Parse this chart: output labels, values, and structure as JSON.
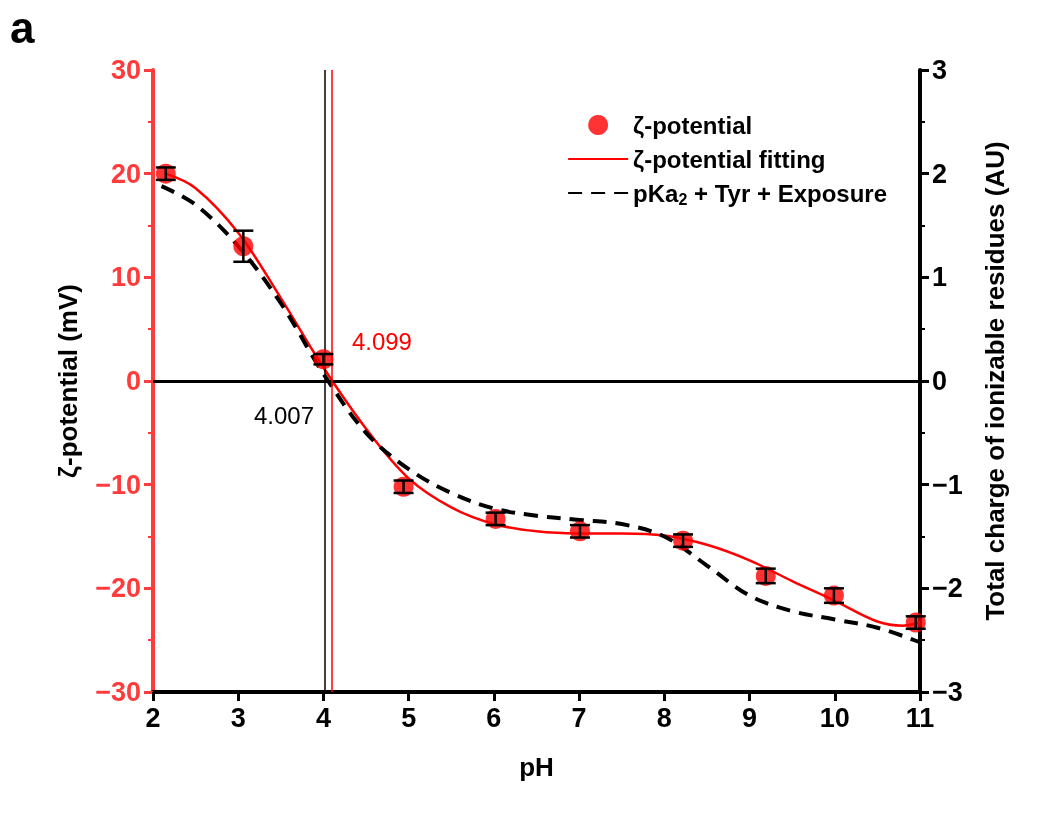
{
  "chart_data": {
    "type": "scatter",
    "xlabel": "pH",
    "ylabel": "ζ-potential (mV)",
    "y2label": "Total charge of ionizable residues (AU)",
    "annotations": [
      "a"
    ],
    "xlim": [
      2,
      11
    ],
    "xticks": [
      2,
      3,
      4,
      5,
      6,
      7,
      8,
      9,
      10,
      11
    ],
    "ylim": [
      -30,
      30
    ],
    "yticks": [
      -30,
      -20,
      -10,
      0,
      10,
      20,
      30
    ],
    "y2lim": [
      -3,
      3
    ],
    "y2ticks": [
      -3,
      -2,
      -1,
      0,
      1,
      2,
      3
    ],
    "legend": "top right",
    "grid": false,
    "series": [
      {
        "name": "ζ-potential",
        "marker": "circle",
        "color": "#ff0000",
        "x": [
          2.15,
          3.06,
          4.0,
          4.94,
          6.02,
          7.01,
          8.22,
          9.19,
          9.99,
          10.95
        ],
        "values": [
          20,
          13,
          2.1,
          -10.2,
          -13.3,
          -14.5,
          -15.4,
          -18.8,
          -20.7,
          -23.3
        ],
        "errors": [
          0.6,
          1.5,
          0.5,
          0.6,
          0.6,
          0.6,
          0.6,
          0.7,
          0.7,
          0.6
        ]
      },
      {
        "name": "ζ-potential fitting",
        "type": "line",
        "marker": "none",
        "line_style": "solid",
        "color": "#ff0000",
        "x": [
          2.15,
          2.5,
          3,
          3.5,
          4,
          4.5,
          5,
          5.5,
          6,
          6.5,
          7,
          7.5,
          8,
          8.5,
          9,
          9.5,
          10,
          10.5,
          10.8,
          11
        ],
        "values": [
          20,
          18.6,
          14.3,
          8,
          1.3,
          -4.6,
          -9.4,
          -12.2,
          -13.8,
          -14.5,
          -14.7,
          -14.7,
          -14.9,
          -15.8,
          -17.3,
          -19.3,
          -21.2,
          -23.2,
          -23.6,
          -23.3
        ]
      },
      {
        "name": "pKa$_{2}$ + Tyr + Exposure",
        "type": "line",
        "axis": "y2",
        "marker": "none",
        "line_style": "dashed",
        "color": "#000000",
        "x": [
          2.1,
          2.5,
          3,
          3.5,
          4,
          4.5,
          5,
          5.5,
          6,
          6.5,
          7,
          7.5,
          8,
          8.5,
          9,
          9.5,
          10,
          10.5,
          11
        ],
        "values": [
          1.88,
          1.7,
          1.3,
          0.75,
          0.07,
          -0.5,
          -0.85,
          -1.08,
          -1.23,
          -1.3,
          -1.34,
          -1.38,
          -1.5,
          -1.78,
          -2.07,
          -2.22,
          -2.3,
          -2.38,
          -2.52
        ]
      }
    ],
    "ref_lines": [
      {
        "axis": "y",
        "value": 0,
        "color": "#000000",
        "line_style": "solid"
      },
      {
        "axis": "x",
        "value": 4.007,
        "label": "4.007",
        "color": "#000000",
        "line_style": "solid"
      },
      {
        "axis": "x",
        "value": 4.099,
        "label": "4.099",
        "color": "#ff0000",
        "line_style": "solid"
      }
    ]
  }
}
